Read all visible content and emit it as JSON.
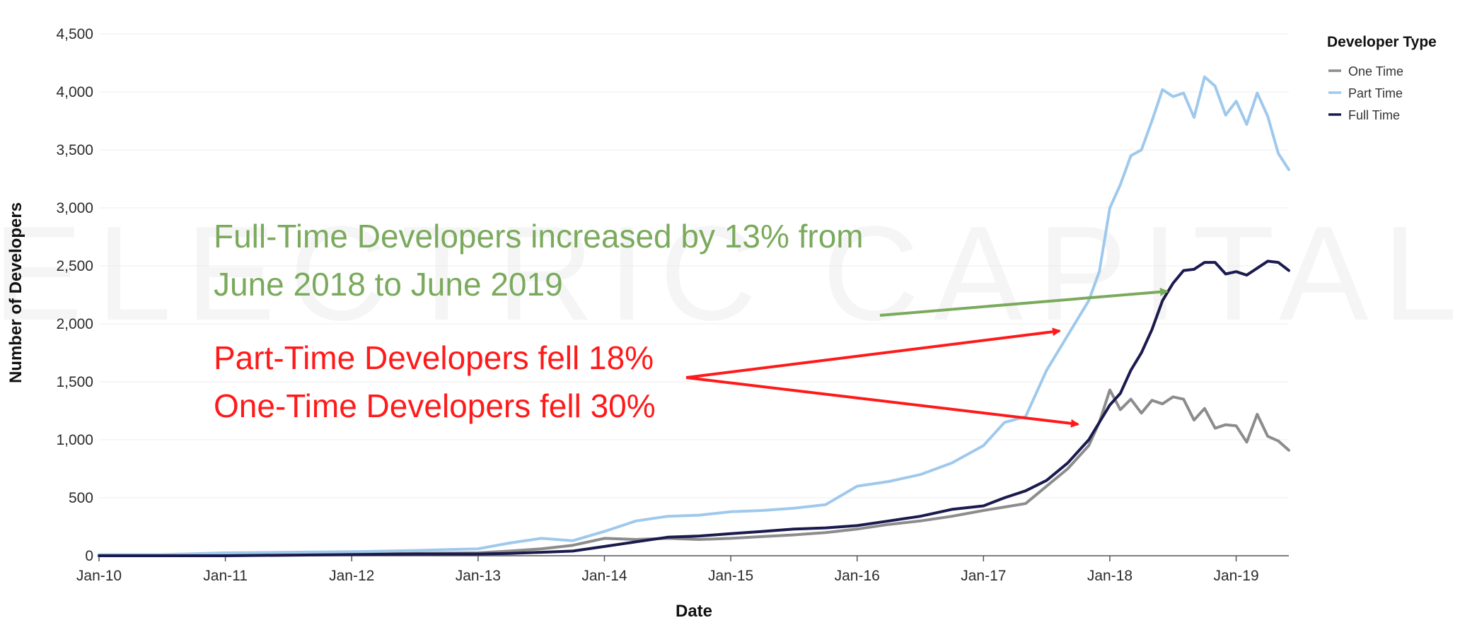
{
  "chart_data": {
    "type": "line",
    "title": "",
    "xlabel": "Date",
    "ylabel": "Number of Developers",
    "x_tick_labels": [
      "Jan-10",
      "Jan-11",
      "Jan-12",
      "Jan-13",
      "Jan-14",
      "Jan-15",
      "Jan-16",
      "Jan-17",
      "Jan-18",
      "Jan-19"
    ],
    "y_tick_labels": [
      "0",
      "500",
      "1,000",
      "1,500",
      "2,000",
      "2,500",
      "3,000",
      "3,500",
      "4,000",
      "4,500"
    ],
    "ylim": [
      0,
      4500
    ],
    "x_range": [
      "2010-01",
      "2019-06"
    ],
    "grid": true,
    "legend": {
      "title": "Developer Type",
      "placement": "top-right",
      "entries": [
        "One Time",
        "Part Time",
        "Full Time"
      ]
    },
    "series": [
      {
        "name": "One Time",
        "color": "#8c8c8c",
        "points": [
          [
            "2010-01",
            0
          ],
          [
            "2010-07",
            5
          ],
          [
            "2011-01",
            10
          ],
          [
            "2011-07",
            15
          ],
          [
            "2012-01",
            15
          ],
          [
            "2012-07",
            20
          ],
          [
            "2013-01",
            25
          ],
          [
            "2013-04",
            40
          ],
          [
            "2013-07",
            60
          ],
          [
            "2013-10",
            90
          ],
          [
            "2014-01",
            150
          ],
          [
            "2014-04",
            140
          ],
          [
            "2014-07",
            150
          ],
          [
            "2014-10",
            140
          ],
          [
            "2015-01",
            150
          ],
          [
            "2015-04",
            165
          ],
          [
            "2015-07",
            180
          ],
          [
            "2015-10",
            200
          ],
          [
            "2016-01",
            230
          ],
          [
            "2016-04",
            270
          ],
          [
            "2016-07",
            300
          ],
          [
            "2016-10",
            340
          ],
          [
            "2017-01",
            390
          ],
          [
            "2017-03",
            420
          ],
          [
            "2017-05",
            450
          ],
          [
            "2017-07",
            600
          ],
          [
            "2017-09",
            750
          ],
          [
            "2017-11",
            950
          ],
          [
            "2017-12",
            1150
          ],
          [
            "2018-01",
            1430
          ],
          [
            "2018-02",
            1260
          ],
          [
            "2018-03",
            1350
          ],
          [
            "2018-04",
            1230
          ],
          [
            "2018-05",
            1340
          ],
          [
            "2018-06",
            1310
          ],
          [
            "2018-07",
            1370
          ],
          [
            "2018-08",
            1350
          ],
          [
            "2018-09",
            1170
          ],
          [
            "2018-10",
            1270
          ],
          [
            "2018-11",
            1100
          ],
          [
            "2018-12",
            1130
          ],
          [
            "2019-01",
            1120
          ],
          [
            "2019-02",
            980
          ],
          [
            "2019-03",
            1220
          ],
          [
            "2019-04",
            1030
          ],
          [
            "2019-05",
            990
          ],
          [
            "2019-06",
            910
          ]
        ]
      },
      {
        "name": "Part Time",
        "color": "#9fc9ec",
        "points": [
          [
            "2010-01",
            10
          ],
          [
            "2010-07",
            10
          ],
          [
            "2011-01",
            25
          ],
          [
            "2011-07",
            30
          ],
          [
            "2012-01",
            35
          ],
          [
            "2012-07",
            45
          ],
          [
            "2013-01",
            60
          ],
          [
            "2013-04",
            110
          ],
          [
            "2013-07",
            150
          ],
          [
            "2013-10",
            130
          ],
          [
            "2014-01",
            210
          ],
          [
            "2014-04",
            300
          ],
          [
            "2014-07",
            340
          ],
          [
            "2014-10",
            350
          ],
          [
            "2015-01",
            380
          ],
          [
            "2015-04",
            390
          ],
          [
            "2015-07",
            410
          ],
          [
            "2015-10",
            440
          ],
          [
            "2016-01",
            600
          ],
          [
            "2016-04",
            640
          ],
          [
            "2016-07",
            700
          ],
          [
            "2016-10",
            800
          ],
          [
            "2017-01",
            950
          ],
          [
            "2017-03",
            1150
          ],
          [
            "2017-05",
            1200
          ],
          [
            "2017-07",
            1600
          ],
          [
            "2017-09",
            1900
          ],
          [
            "2017-11",
            2200
          ],
          [
            "2017-12",
            2450
          ],
          [
            "2018-01",
            3000
          ],
          [
            "2018-02",
            3200
          ],
          [
            "2018-03",
            3450
          ],
          [
            "2018-04",
            3500
          ],
          [
            "2018-05",
            3750
          ],
          [
            "2018-06",
            4020
          ],
          [
            "2018-07",
            3960
          ],
          [
            "2018-08",
            3990
          ],
          [
            "2018-09",
            3780
          ],
          [
            "2018-10",
            4130
          ],
          [
            "2018-11",
            4050
          ],
          [
            "2018-12",
            3800
          ],
          [
            "2019-01",
            3920
          ],
          [
            "2019-02",
            3720
          ],
          [
            "2019-03",
            3990
          ],
          [
            "2019-04",
            3790
          ],
          [
            "2019-05",
            3470
          ],
          [
            "2019-06",
            3330
          ]
        ]
      },
      {
        "name": "Full Time",
        "color": "#1a1a4e",
        "points": [
          [
            "2010-01",
            0
          ],
          [
            "2010-07",
            0
          ],
          [
            "2011-01",
            0
          ],
          [
            "2011-07",
            5
          ],
          [
            "2012-01",
            10
          ],
          [
            "2012-07",
            15
          ],
          [
            "2013-01",
            15
          ],
          [
            "2013-04",
            20
          ],
          [
            "2013-07",
            30
          ],
          [
            "2013-10",
            40
          ],
          [
            "2014-01",
            80
          ],
          [
            "2014-04",
            120
          ],
          [
            "2014-07",
            160
          ],
          [
            "2014-10",
            170
          ],
          [
            "2015-01",
            190
          ],
          [
            "2015-04",
            210
          ],
          [
            "2015-07",
            230
          ],
          [
            "2015-10",
            240
          ],
          [
            "2016-01",
            260
          ],
          [
            "2016-04",
            300
          ],
          [
            "2016-07",
            340
          ],
          [
            "2016-10",
            400
          ],
          [
            "2017-01",
            430
          ],
          [
            "2017-03",
            500
          ],
          [
            "2017-05",
            560
          ],
          [
            "2017-07",
            650
          ],
          [
            "2017-09",
            800
          ],
          [
            "2017-11",
            1000
          ],
          [
            "2017-12",
            1150
          ],
          [
            "2018-01",
            1300
          ],
          [
            "2018-02",
            1400
          ],
          [
            "2018-03",
            1600
          ],
          [
            "2018-04",
            1750
          ],
          [
            "2018-05",
            1950
          ],
          [
            "2018-06",
            2200
          ],
          [
            "2018-07",
            2350
          ],
          [
            "2018-08",
            2460
          ],
          [
            "2018-09",
            2470
          ],
          [
            "2018-10",
            2530
          ],
          [
            "2018-11",
            2530
          ],
          [
            "2018-12",
            2430
          ],
          [
            "2019-01",
            2450
          ],
          [
            "2019-02",
            2420
          ],
          [
            "2019-03",
            2480
          ],
          [
            "2019-04",
            2540
          ],
          [
            "2019-05",
            2530
          ],
          [
            "2019-06",
            2460
          ]
        ]
      }
    ],
    "annotations": [
      {
        "lines": [
          "Full-Time Developers increased by 13% from",
          "June 2018 to June 2019"
        ],
        "color": "#7aaa5c"
      },
      {
        "lines": [
          "Part-Time Developers fell 18%",
          "One-Time Developers fell 30%"
        ],
        "color": "#ff1a1a"
      }
    ],
    "watermark": "ELECTRIC CAPITAL"
  }
}
